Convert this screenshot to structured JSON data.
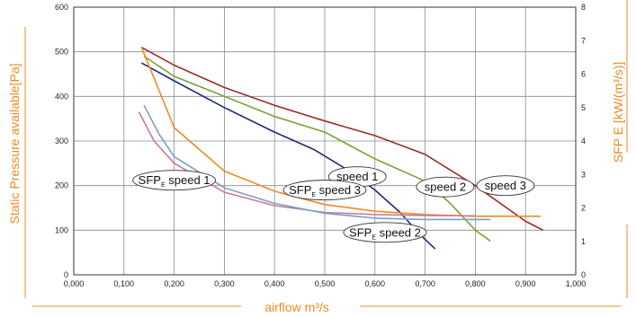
{
  "chart_data": {
    "type": "line",
    "title": "",
    "xlabel": "airflow m³/s",
    "ylabel_left": "Static Pressure available[Pa]",
    "ylabel_right": "SFP E [kW/(m³/s)]",
    "xlim": [
      0,
      1
    ],
    "ylim_left": [
      0,
      600
    ],
    "ylim_right": [
      0,
      8
    ],
    "grid": true,
    "x_tick_labels": [
      "0,000",
      "0,100",
      "0,200",
      "0,300",
      "0,400",
      "0,500",
      "0,600",
      "0,700",
      "0,800",
      "0,900",
      "1,000"
    ],
    "y_left_tick_labels": [
      "0",
      "100",
      "200",
      "300",
      "400",
      "500",
      "600"
    ],
    "y_right_tick_labels": [
      "0",
      "1",
      "2",
      "3",
      "4",
      "5",
      "6",
      "7",
      "8"
    ],
    "accent_color": "#f08a24",
    "series": [
      {
        "color": "#1f2d7a",
        "axis": "left",
        "x": [
          0.135,
          0.2,
          0.3,
          0.4,
          0.48,
          0.55,
          0.6,
          0.65,
          0.69,
          0.72
        ],
        "y": [
          475,
          435,
          375,
          320,
          280,
          232,
          190,
          140,
          90,
          58
        ]
      },
      {
        "color": "#7aa23a",
        "axis": "left",
        "x": [
          0.14,
          0.2,
          0.3,
          0.4,
          0.5,
          0.55,
          0.6,
          0.7,
          0.75,
          0.8,
          0.83
        ],
        "y": [
          490,
          445,
          400,
          355,
          320,
          290,
          260,
          210,
          160,
          100,
          76
        ]
      },
      {
        "color": "#9b2b2b",
        "axis": "left",
        "x": [
          0.135,
          0.2,
          0.3,
          0.4,
          0.5,
          0.6,
          0.7,
          0.8,
          0.9,
          0.935
        ],
        "y": [
          510,
          470,
          420,
          380,
          345,
          312,
          270,
          200,
          120,
          100
        ]
      },
      {
        "color": "#f08a24",
        "axis": "right",
        "x": [
          0.135,
          0.2,
          0.3,
          0.4,
          0.5,
          0.6,
          0.7,
          0.8,
          0.9,
          0.93
        ],
        "y": [
          6.8,
          4.4,
          3.1,
          2.5,
          2.1,
          1.9,
          1.8,
          1.75,
          1.75,
          1.75
        ]
      },
      {
        "color": "#c97b96",
        "axis": "left",
        "x": [
          0.13,
          0.16,
          0.2,
          0.3,
          0.4,
          0.5,
          0.6,
          0.7,
          0.8
        ],
        "y": [
          365,
          300,
          250,
          185,
          155,
          140,
          135,
          133,
          132
        ]
      },
      {
        "color": "#7a9fc6",
        "axis": "left",
        "x": [
          0.14,
          0.17,
          0.2,
          0.3,
          0.4,
          0.5,
          0.6,
          0.7,
          0.83
        ],
        "y": [
          380,
          315,
          265,
          195,
          160,
          138,
          127,
          124,
          124
        ]
      }
    ],
    "annotations": [
      {
        "text": "SFP",
        "sub": "E",
        "rest": " speed 1",
        "x": 0.2,
        "y": 212
      },
      {
        "text": "speed 1",
        "x": 0.565,
        "y": 220
      },
      {
        "text": "SFP",
        "sub": "E",
        "rest": " speed 3",
        "x": 0.5,
        "y": 190
      },
      {
        "text": "speed 2",
        "x": 0.74,
        "y": 197
      },
      {
        "text": "speed 3",
        "x": 0.86,
        "y": 200
      },
      {
        "text": "SFP",
        "sub": "E",
        "rest": " speed 2",
        "x": 0.62,
        "y": 95
      }
    ]
  }
}
